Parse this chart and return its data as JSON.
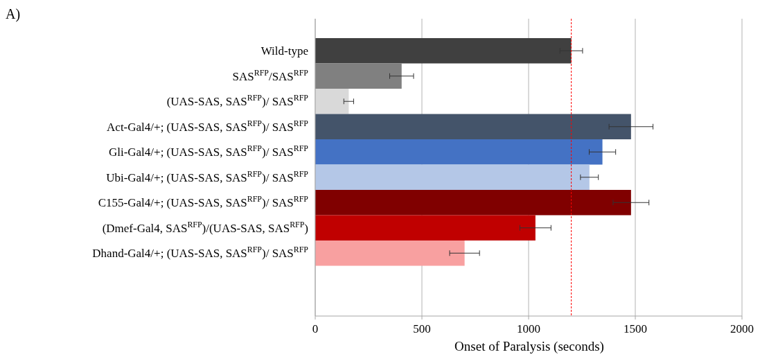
{
  "chart_data": {
    "type": "bar",
    "orientation": "horizontal",
    "xlabel": "Onset of Paralysis (seconds)",
    "categories": [
      "Wild-type",
      "SAS$^{RFP}$/SAS$^{RFP}$",
      "(UAS-SAS, SAS$^{RFP}$)/ SAS$^{RFP}$",
      "Act-Gal4/+; (UAS-SAS, SAS$^{RFP}$)/ SAS$^{RFP}$",
      "Gli-Gal4/+; (UAS-SAS, SAS$^{RFP}$)/ SAS$^{RFP}$",
      "Ubi-Gal4/+; (UAS-SAS, SAS$^{RFP}$)/ SAS$^{RFP}$",
      "C155-Gal4/+; (UAS-SAS, SAS$^{RFP}$)/ SAS$^{RFP}$",
      "(Dmef-Gal4, SAS$^{RFP}$)/(UAS-SAS, SAS$^{RFP}$)",
      "Dhand-Gal4/+; (UAS-SAS, SAS$^{RFP}$)/ SAS$^{RFP}$"
    ],
    "values": [
      1200,
      405,
      157,
      1480,
      1346,
      1285,
      1480,
      1032,
      700
    ],
    "errors": [
      53,
      56,
      23,
      103,
      62,
      42,
      84,
      73,
      70
    ],
    "colors": [
      "#404040",
      "#808080",
      "#d9d9d9",
      "#44546a",
      "#4472c4",
      "#b4c7e7",
      "#800000",
      "#c00000",
      "#f8a0a0"
    ],
    "xlim": [
      0,
      2000
    ],
    "xticks": [
      0,
      500,
      1000,
      1500,
      2000
    ],
    "grid": "x",
    "ref_lines": [
      {
        "axis": "x",
        "value": 1200,
        "color": "#ff0000",
        "line_style": "dashed"
      }
    ],
    "annotations": [
      "A)"
    ]
  }
}
